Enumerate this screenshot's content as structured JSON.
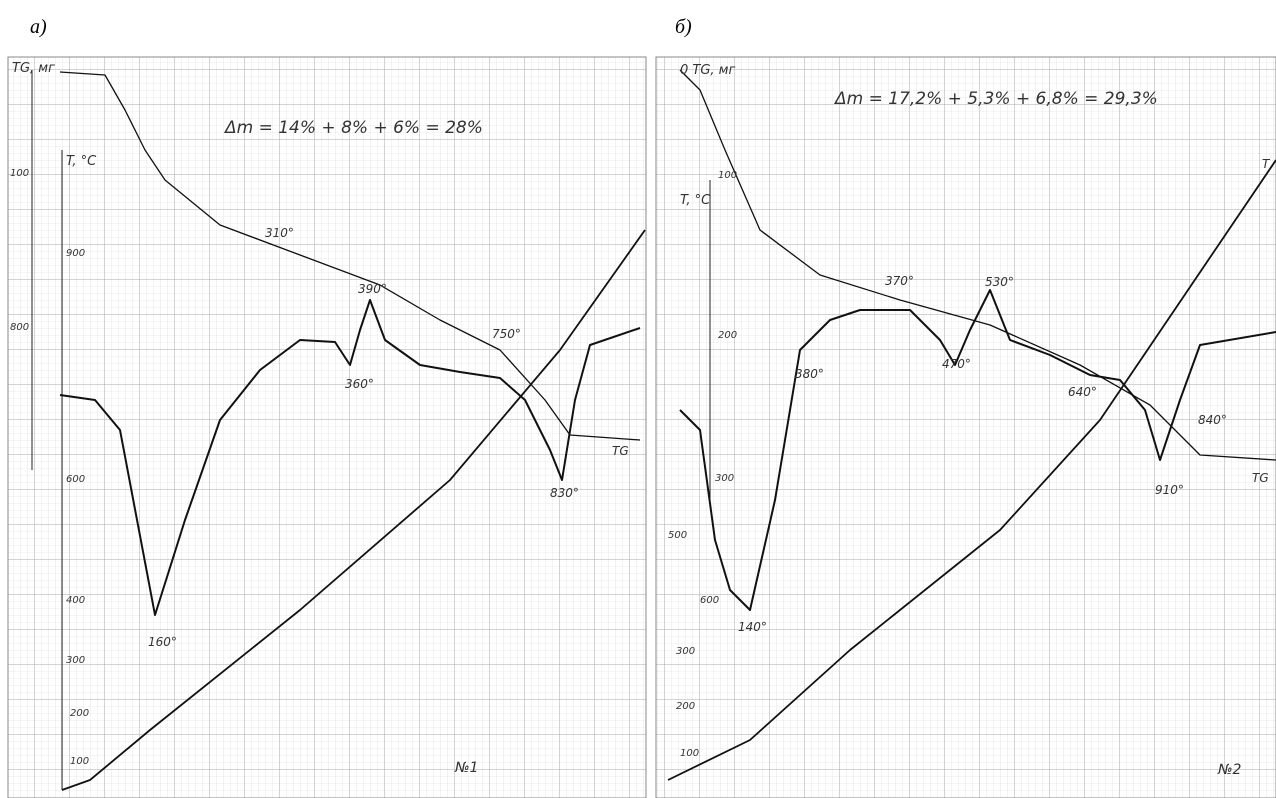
{
  "panels": [
    {
      "label": "а)",
      "mass_change": "Δm = 14% + 8% + 6% = 28%",
      "tg_axis": "TG, мг",
      "t_axis": "T, °C",
      "scale_labels": [
        "100",
        "900",
        "800",
        "600",
        "400",
        "300",
        "200",
        "100"
      ],
      "peaks": [
        "310°",
        "390°",
        "360°",
        "750°",
        "830°",
        "160°"
      ],
      "curve_labels": [
        "TG"
      ],
      "sample": "№1"
    },
    {
      "label": "б)",
      "mass_change": "Δm = 17,2% + 5,3% + 6,8% = 29,3%",
      "tg_axis": "0 TG, мг",
      "t_axis": "T, °C",
      "scale_labels": [
        "100",
        "200",
        "300",
        "500",
        "600",
        "300",
        "200",
        "100"
      ],
      "peaks": [
        "380°",
        "370°",
        "470°",
        "530°",
        "640°",
        "910°",
        "840°",
        "140°"
      ],
      "curve_labels": [
        "TG",
        "T"
      ],
      "sample": "№2"
    }
  ]
}
